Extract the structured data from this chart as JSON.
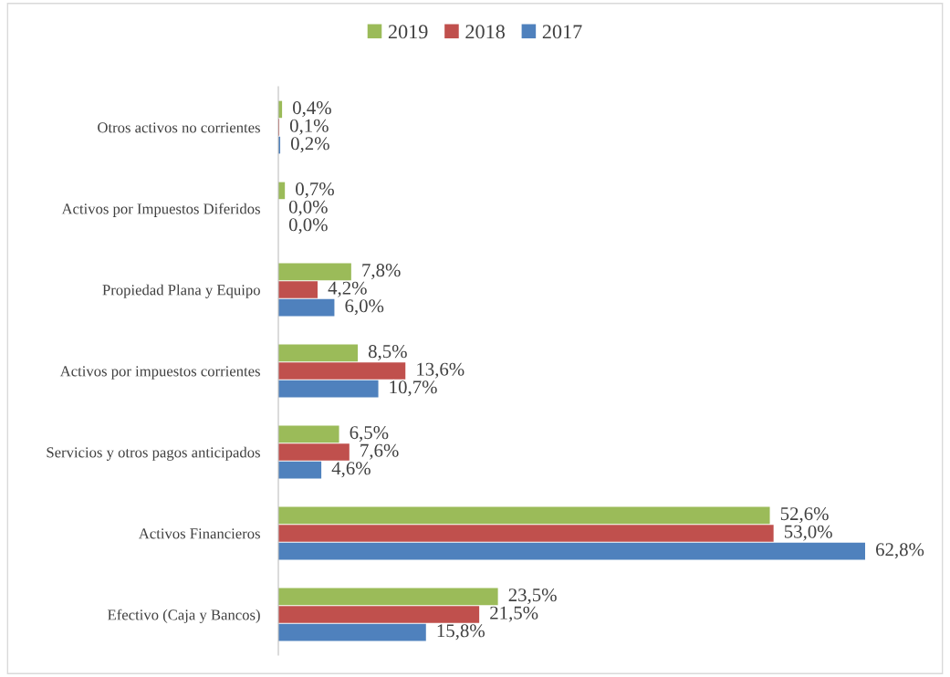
{
  "chart_data": {
    "type": "bar",
    "orientation": "horizontal",
    "legend": "top",
    "grid": false,
    "categories": [
      "Otros activos no corrientes",
      "Activos por Impuestos Diferidos",
      "Propiedad Plana y Equipo",
      "Activos por impuestos corrientes",
      "Servicios y otros pagos anticipados",
      "Activos Financieros",
      "Efectivo (Caja y Bancos)"
    ],
    "series": [
      {
        "name": "2019",
        "color": "#9bbb59",
        "values": [
          0.4,
          0.7,
          7.8,
          8.5,
          6.5,
          52.6,
          23.5
        ],
        "value_labels": [
          "0,4%",
          "0,7%",
          "7,8%",
          "8,5%",
          "6,5%",
          "52,6%",
          "23,5%"
        ]
      },
      {
        "name": "2018",
        "color": "#c0504d",
        "values": [
          0.1,
          0.0,
          4.2,
          13.6,
          7.6,
          53.0,
          21.5
        ],
        "value_labels": [
          "0,1%",
          "0,0%",
          "4,2%",
          "13,6%",
          "7,6%",
          "53,0%",
          "21,5%"
        ]
      },
      {
        "name": "2017",
        "color": "#4f81bd",
        "values": [
          0.2,
          0.0,
          6.0,
          10.7,
          4.6,
          62.8,
          15.8
        ],
        "value_labels": [
          "0,2%",
          "0,0%",
          "6,0%",
          "10,7%",
          "4,6%",
          "62,8%",
          "15,8%"
        ]
      }
    ]
  }
}
